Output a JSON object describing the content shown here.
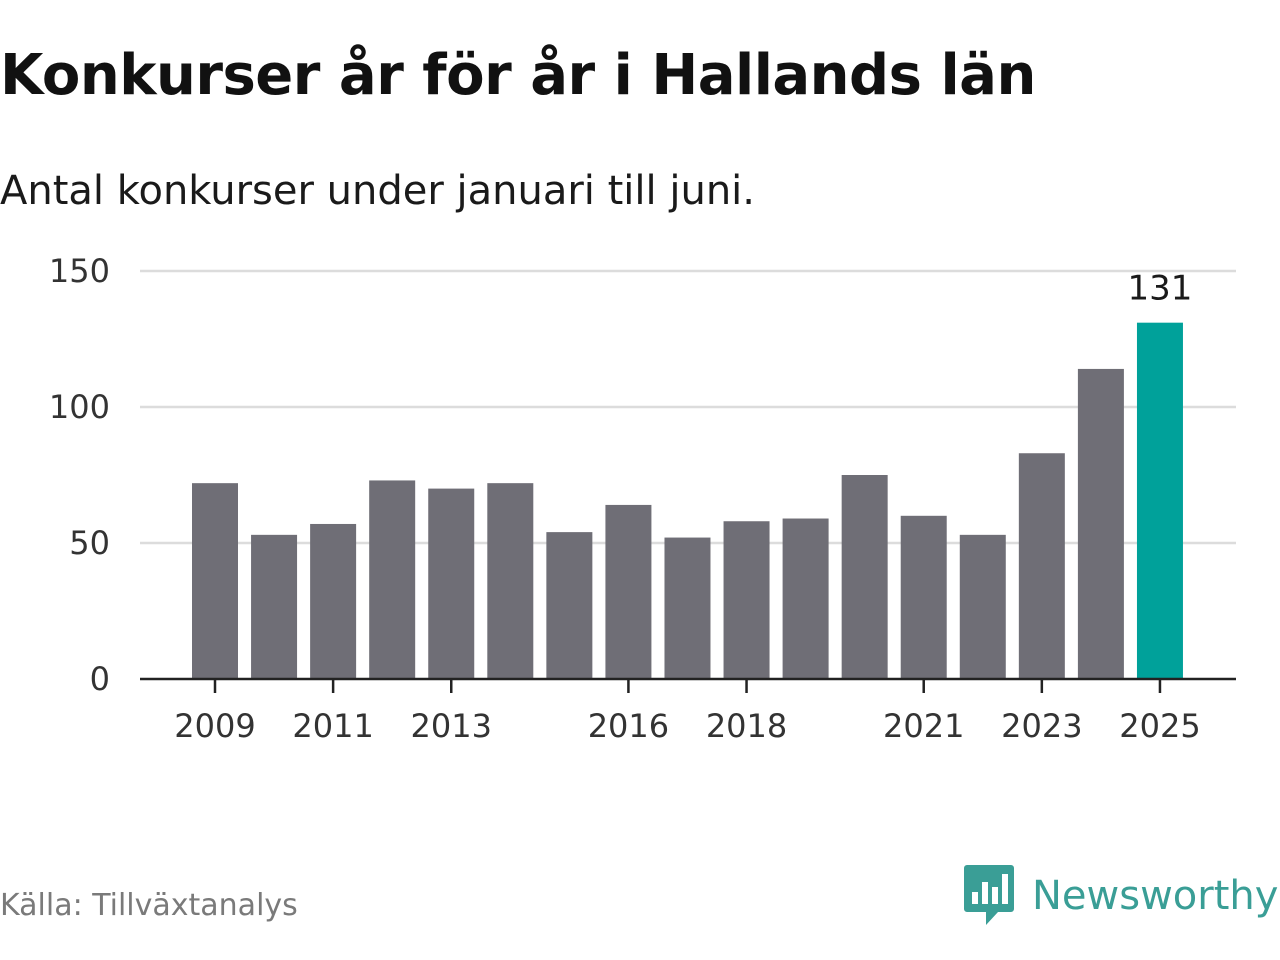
{
  "title": "Konkurser år för år i Hallands län",
  "subtitle": "Antal konkurser under januari till juni.",
  "source": "Källa: Tillväxtanalys",
  "brand": {
    "name": "Newsworthy",
    "icon": "newsworthy-bar-chart-logo-icon"
  },
  "colors": {
    "bar": "#6f6e76",
    "highlight": "#00a19a",
    "grid": "#dcdcdc",
    "axis": "#222222",
    "brand": "#3a9e96"
  },
  "chart_data": {
    "type": "bar",
    "title": "Konkurser år för år i Hallands län",
    "subtitle": "Antal konkurser under januari till juni.",
    "xlabel": "",
    "ylabel": "",
    "categories": [
      "2009",
      "2010",
      "2011",
      "2012",
      "2013",
      "2014",
      "2015",
      "2016",
      "2017",
      "2018",
      "2019",
      "2020",
      "2021",
      "2022",
      "2023",
      "2024",
      "2025"
    ],
    "values": [
      72,
      53,
      57,
      73,
      70,
      72,
      54,
      64,
      52,
      58,
      59,
      75,
      60,
      53,
      83,
      114,
      131
    ],
    "ylim": [
      0,
      150
    ],
    "yticks": [
      0,
      50,
      100,
      150
    ],
    "xtick_labels": [
      "2009",
      "2011",
      "2013",
      "2016",
      "2018",
      "2021",
      "2023",
      "2025"
    ],
    "highlight_category": "2025",
    "data_labels": [
      {
        "category": "2025",
        "text": "131"
      }
    ],
    "grid": true,
    "legend": "none"
  }
}
